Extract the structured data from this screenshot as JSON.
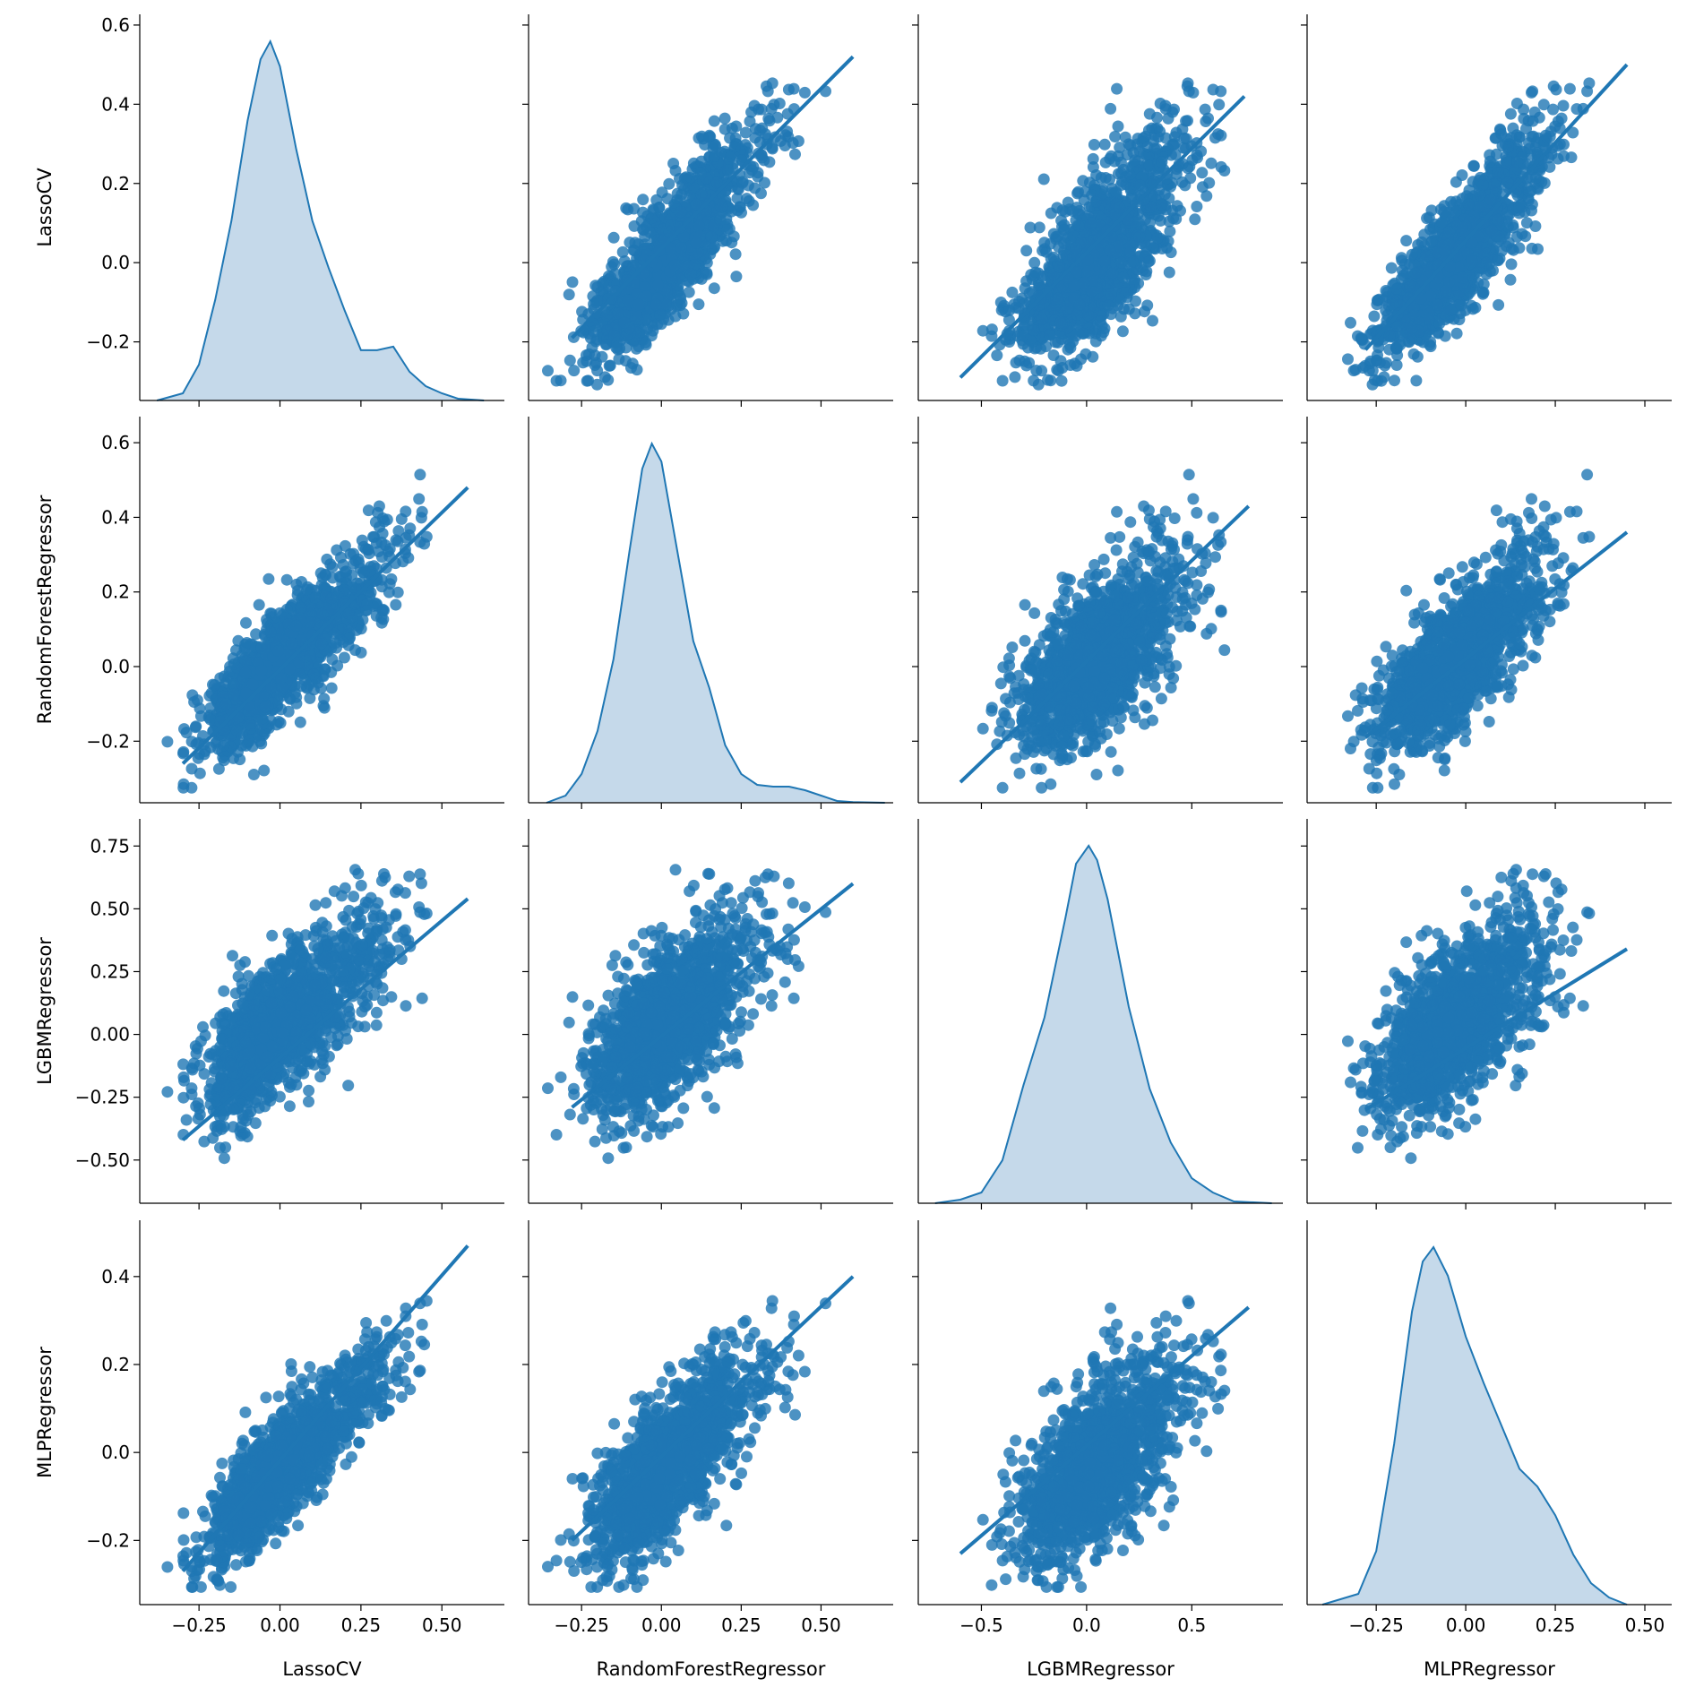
{
  "chart_data": {
    "type": "pairplot",
    "variables": [
      "LassoCV",
      "RandomForestRegressor",
      "LGBMRegressor",
      "MLPRegressor"
    ],
    "color": "#1f77b4",
    "kde_fill": "#c5d9ea",
    "grid": false,
    "off_diagonal": "scatter with regression line",
    "diagonal": "kde",
    "axis_ranges": {
      "LassoCV": [
        -0.433,
        0.693
      ],
      "RandomForestRegressor": [
        -0.416,
        0.726
      ],
      "LGBMRegressor": [
        -0.8,
        0.933
      ],
      "MLPRegressor": [
        -0.443,
        0.575
      ]
    },
    "y_axis_ranges": {
      "LassoCV": [
        -0.348,
        0.627
      ],
      "RandomForestRegressor": [
        -0.365,
        0.67
      ],
      "LGBMRegressor": [
        -0.672,
        0.858
      ],
      "MLPRegressor": [
        -0.346,
        0.528
      ]
    },
    "x_ticks": {
      "LassoCV": [
        "−0.25",
        "0.00",
        "0.25",
        "0.50"
      ],
      "RandomForestRegressor": [
        "−0.25",
        "0.00",
        "0.25",
        "0.50"
      ],
      "LGBMRegressor": [
        "−0.5",
        "0.0",
        "0.5"
      ],
      "MLPRegressor": [
        "−0.25",
        "0.00",
        "0.25",
        "0.50"
      ]
    },
    "x_tick_values": {
      "LassoCV": [
        -0.25,
        0,
        0.25,
        0.5
      ],
      "RandomForestRegressor": [
        -0.25,
        0,
        0.25,
        0.5
      ],
      "LGBMRegressor": [
        -0.5,
        0,
        0.5
      ],
      "MLPRegressor": [
        -0.25,
        0,
        0.25,
        0.5
      ]
    },
    "y_ticks": {
      "LassoCV": [
        "0.6",
        "0.4",
        "0.2",
        "0.0",
        "−0.2"
      ],
      "RandomForestRegressor": [
        "0.6",
        "0.4",
        "0.2",
        "0.0",
        "−0.2"
      ],
      "LGBMRegressor": [
        "0.75",
        "0.50",
        "0.25",
        "0.00",
        "−0.25",
        "−0.50"
      ],
      "MLPRegressor": [
        "0.4",
        "0.2",
        "0.0",
        "−0.2"
      ]
    },
    "y_tick_values": {
      "LassoCV": [
        0.6,
        0.4,
        0.2,
        0,
        -0.2
      ],
      "RandomForestRegressor": [
        0.6,
        0.4,
        0.2,
        0,
        -0.2
      ],
      "LGBMRegressor": [
        0.75,
        0.5,
        0.25,
        0,
        -0.25,
        -0.5
      ],
      "MLPRegressor": [
        0.4,
        0.2,
        0,
        -0.2
      ]
    },
    "kde_relative_density": {
      "LassoCV": {
        "x": [
          -0.38,
          -0.3,
          -0.25,
          -0.2,
          -0.15,
          -0.1,
          -0.06,
          -0.03,
          0.0,
          0.05,
          0.1,
          0.15,
          0.2,
          0.25,
          0.3,
          0.35,
          0.4,
          0.45,
          0.5,
          0.55,
          0.63
        ],
        "y": [
          0,
          0.02,
          0.1,
          0.28,
          0.5,
          0.78,
          0.95,
          1.0,
          0.93,
          0.7,
          0.5,
          0.37,
          0.25,
          0.14,
          0.14,
          0.15,
          0.08,
          0.04,
          0.02,
          0.005,
          0
        ]
      },
      "RandomForestRegressor": {
        "x": [
          -0.36,
          -0.3,
          -0.25,
          -0.2,
          -0.15,
          -0.1,
          -0.06,
          -0.03,
          0.0,
          0.05,
          0.1,
          0.15,
          0.2,
          0.25,
          0.3,
          0.35,
          0.4,
          0.45,
          0.5,
          0.55,
          0.6,
          0.7
        ],
        "y": [
          0,
          0.02,
          0.08,
          0.2,
          0.4,
          0.7,
          0.93,
          1.0,
          0.95,
          0.7,
          0.45,
          0.32,
          0.16,
          0.08,
          0.05,
          0.045,
          0.045,
          0.035,
          0.02,
          0.005,
          0.002,
          0
        ]
      },
      "LGBMRegressor": {
        "x": [
          -0.72,
          -0.6,
          -0.5,
          -0.4,
          -0.3,
          -0.2,
          -0.1,
          -0.05,
          0.01,
          0.05,
          0.1,
          0.2,
          0.3,
          0.4,
          0.5,
          0.55,
          0.6,
          0.7,
          0.88
        ],
        "y": [
          0,
          0.01,
          0.03,
          0.12,
          0.33,
          0.52,
          0.8,
          0.95,
          1.0,
          0.96,
          0.85,
          0.55,
          0.32,
          0.17,
          0.07,
          0.05,
          0.03,
          0.005,
          0
        ]
      },
      "MLPRegressor": {
        "x": [
          -0.4,
          -0.3,
          -0.25,
          -0.2,
          -0.15,
          -0.12,
          -0.09,
          -0.05,
          0.0,
          0.05,
          0.1,
          0.15,
          0.2,
          0.25,
          0.3,
          0.35,
          0.4,
          0.45
        ],
        "y": [
          0,
          0.03,
          0.15,
          0.45,
          0.82,
          0.96,
          1.0,
          0.92,
          0.75,
          0.62,
          0.5,
          0.38,
          0.33,
          0.25,
          0.14,
          0.06,
          0.02,
          0
        ]
      }
    },
    "regression_lines": [
      {
        "x": "RandomForestRegressor",
        "y": "LassoCV",
        "from": [
          -0.28,
          -0.19
        ],
        "to": [
          0.6,
          0.52
        ]
      },
      {
        "x": "LGBMRegressor",
        "y": "LassoCV",
        "from": [
          -0.6,
          -0.29
        ],
        "to": [
          0.75,
          0.42
        ]
      },
      {
        "x": "MLPRegressor",
        "y": "LassoCV",
        "from": [
          -0.28,
          -0.22
        ],
        "to": [
          0.45,
          0.5
        ]
      },
      {
        "x": "LassoCV",
        "y": "RandomForestRegressor",
        "from": [
          -0.3,
          -0.26
        ],
        "to": [
          0.58,
          0.48
        ]
      },
      {
        "x": "LGBMRegressor",
        "y": "RandomForestRegressor",
        "from": [
          -0.6,
          -0.31
        ],
        "to": [
          0.77,
          0.43
        ]
      },
      {
        "x": "MLPRegressor",
        "y": "RandomForestRegressor",
        "from": [
          -0.28,
          -0.19
        ],
        "to": [
          0.45,
          0.36
        ]
      },
      {
        "x": "LassoCV",
        "y": "LGBMRegressor",
        "from": [
          -0.3,
          -0.42
        ],
        "to": [
          0.58,
          0.54
        ]
      },
      {
        "x": "RandomForestRegressor",
        "y": "LGBMRegressor",
        "from": [
          -0.28,
          -0.29
        ],
        "to": [
          0.6,
          0.6
        ]
      },
      {
        "x": "MLPRegressor",
        "y": "LGBMRegressor",
        "from": [
          -0.28,
          -0.3
        ],
        "to": [
          0.45,
          0.34
        ]
      },
      {
        "x": "LassoCV",
        "y": "MLPRegressor",
        "from": [
          -0.3,
          -0.27
        ],
        "to": [
          0.58,
          0.47
        ]
      },
      {
        "x": "RandomForestRegressor",
        "y": "MLPRegressor",
        "from": [
          -0.28,
          -0.2
        ],
        "to": [
          0.6,
          0.4
        ]
      },
      {
        "x": "LGBMRegressor",
        "y": "MLPRegressor",
        "from": [
          -0.6,
          -0.23
        ],
        "to": [
          0.77,
          0.33
        ]
      }
    ]
  }
}
